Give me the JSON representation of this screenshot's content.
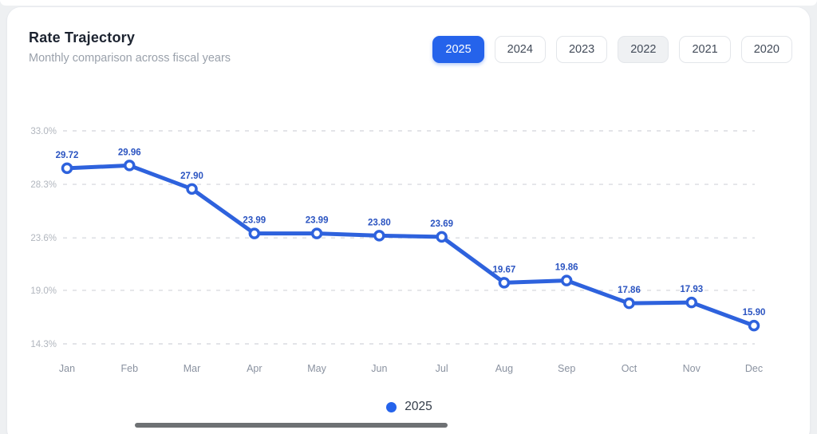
{
  "header": {
    "title": "Rate Trajectory",
    "subtitle": "Monthly comparison across fiscal years"
  },
  "year_tabs": [
    {
      "label": "2025",
      "active": true,
      "muted": false
    },
    {
      "label": "2024",
      "active": false,
      "muted": false
    },
    {
      "label": "2023",
      "active": false,
      "muted": false
    },
    {
      "label": "2022",
      "active": false,
      "muted": true
    },
    {
      "label": "2021",
      "active": false,
      "muted": false
    },
    {
      "label": "2020",
      "active": false,
      "muted": false
    }
  ],
  "chart_data": {
    "type": "line",
    "title": "Rate Trajectory",
    "categories": [
      "Jan",
      "Feb",
      "Mar",
      "Apr",
      "May",
      "Jun",
      "Jul",
      "Aug",
      "Sep",
      "Oct",
      "Nov",
      "Dec"
    ],
    "series": [
      {
        "name": "2025",
        "values": [
          29.72,
          29.96,
          27.9,
          23.99,
          23.99,
          23.8,
          23.69,
          19.67,
          19.86,
          17.86,
          17.93,
          15.9
        ],
        "data_labels": [
          "29.72",
          "29.96",
          "27.90",
          "23.99",
          "23.99",
          "23.80",
          "23.69",
          "19.67",
          "19.86",
          "17.86",
          "17.93",
          "15.90"
        ]
      }
    ],
    "y_ticks": [
      33.0,
      28.3,
      23.6,
      19.0,
      14.3
    ],
    "y_tick_labels": [
      "33.0%",
      "28.3%",
      "23.6%",
      "19.0%",
      "14.3%"
    ],
    "ylim": [
      14.3,
      33.0
    ],
    "grid": "horizontal-dashed",
    "legend_position": "bottom"
  },
  "legend": {
    "label": "2025"
  },
  "colors": {
    "accent": "#2563eb",
    "line": "#2e62dd",
    "marker_fill": "#ffffff",
    "data_label": "#2b54c1",
    "grid": "#dadce0",
    "y_tick_text": "#b1b6be",
    "x_tick_text": "#8a92a0",
    "page_bg": "#eef0f2",
    "card_bg": "#ffffff",
    "scrollbar_thumb": "#6e7174"
  }
}
